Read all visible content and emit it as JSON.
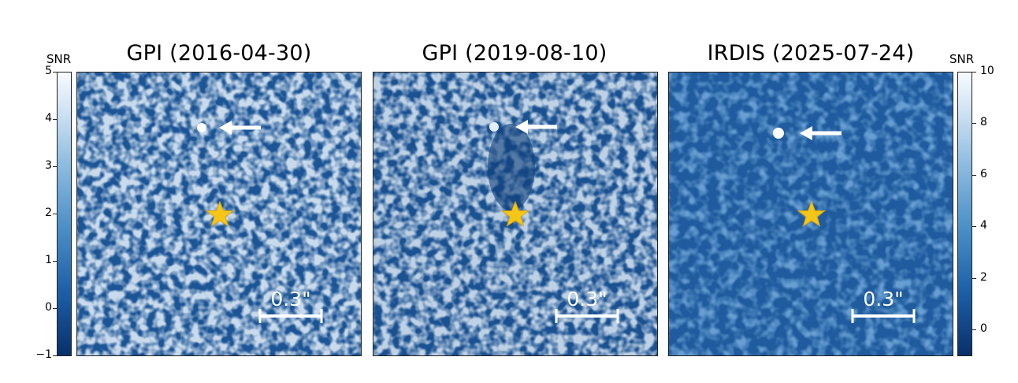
{
  "panels": [
    {
      "title": "GPI (2016-04-30)"
    },
    {
      "title": "GPI (2019-08-10)"
    },
    {
      "title": "IRDIS (2025-07-24)"
    }
  ],
  "scale_bar_label": "0.3\"",
  "colorbar_left": {
    "label": "SNR",
    "ticks": [
      "5",
      "4",
      "3",
      "2",
      "1",
      "0",
      "−1"
    ]
  },
  "colorbar_right": {
    "label": "SNR",
    "ticks": [
      "10",
      "8",
      "6",
      "4",
      "2",
      "0"
    ]
  },
  "colors": {
    "star": "#f5c518",
    "background": "#1d5a9a",
    "marker": "#ffffff"
  },
  "icons": [
    "star-icon",
    "arrow-left-icon"
  ]
}
